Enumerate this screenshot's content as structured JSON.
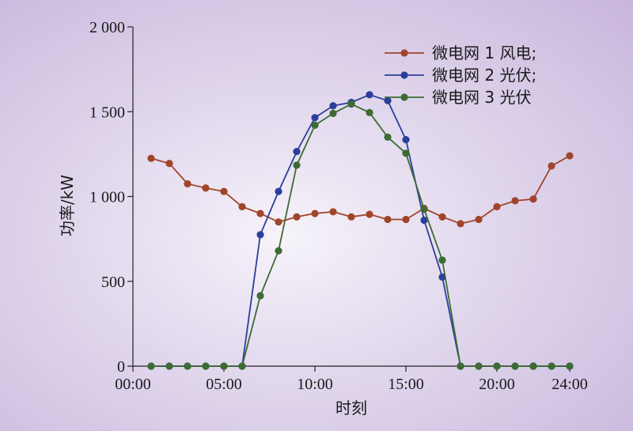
{
  "chart_data": {
    "type": "line",
    "title": "",
    "xlabel": "时刻",
    "ylabel": "功率/kW",
    "xlim": [
      0,
      24
    ],
    "ylim": [
      0,
      2000
    ],
    "x_ticks": [
      0,
      5,
      10,
      15,
      20,
      24
    ],
    "x_tick_labels": [
      "00:00",
      "05:00",
      "10:00",
      "15:00",
      "20:00",
      "24:00"
    ],
    "y_ticks": [
      0,
      500,
      1000,
      1500,
      2000
    ],
    "y_tick_labels": [
      "0",
      "500",
      "1 000",
      "1 500",
      "2 000"
    ],
    "grid": false,
    "legend_position": "top-right",
    "x": [
      1,
      2,
      3,
      4,
      5,
      6,
      7,
      8,
      9,
      10,
      11,
      12,
      13,
      14,
      15,
      16,
      17,
      18,
      19,
      20,
      21,
      22,
      23,
      24
    ],
    "series": [
      {
        "name": "微电网 1 风电;",
        "color": "#a0452a",
        "values": [
          1225,
          1195,
          1075,
          1050,
          1030,
          940,
          900,
          850,
          880,
          900,
          910,
          880,
          895,
          865,
          865,
          930,
          880,
          840,
          865,
          940,
          975,
          985,
          1180,
          1240
        ]
      },
      {
        "name": "微电网 2 光伏;",
        "color": "#2b3f9a",
        "values": [
          0,
          0,
          0,
          0,
          0,
          0,
          775,
          1030,
          1265,
          1465,
          1535,
          1555,
          1600,
          1565,
          1335,
          860,
          525,
          0,
          0,
          0,
          0,
          0,
          0,
          0
        ]
      },
      {
        "name": "微电网 3 光伏",
        "color": "#3d6b33",
        "values": [
          0,
          0,
          0,
          0,
          0,
          0,
          415,
          680,
          1185,
          1420,
          1490,
          1545,
          1495,
          1350,
          1255,
          925,
          625,
          0,
          0,
          0,
          0,
          0,
          0,
          0
        ]
      }
    ]
  }
}
